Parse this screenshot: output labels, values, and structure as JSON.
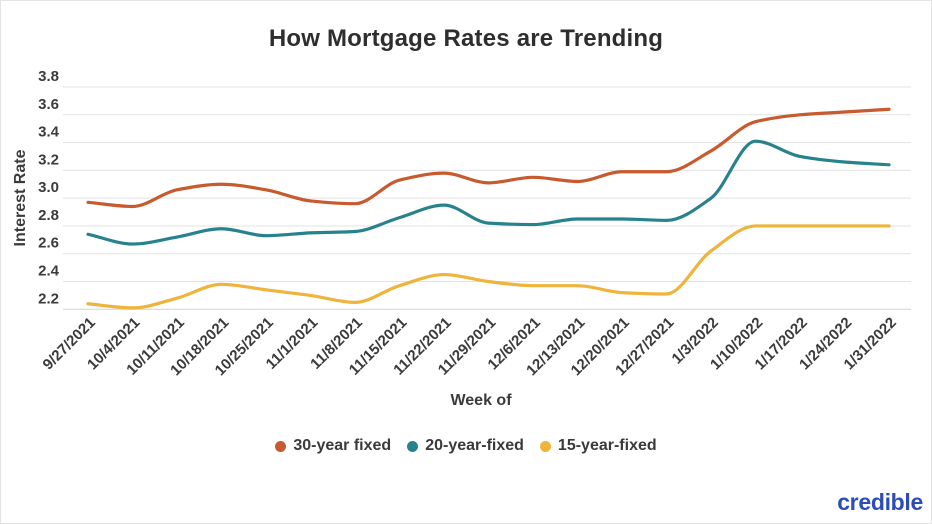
{
  "title": "How Mortgage Rates are Trending",
  "chart_data": {
    "type": "line",
    "title": "How Mortgage Rates are Trending",
    "xlabel": "Week of",
    "ylabel": "Interest Rate",
    "ylim": [
      2.2,
      3.8
    ],
    "y_tick_step": 0.2,
    "y_ticks": [
      "3.8",
      "3.6",
      "3.4",
      "3.2",
      "3.0",
      "2.8",
      "2.6",
      "2.4",
      "2.2"
    ],
    "grid": true,
    "legend_position": "bottom",
    "categories": [
      "9/27/2021",
      "10/4/2021",
      "10/11/2021",
      "10/18/2021",
      "10/25/2021",
      "11/1/2021",
      "11/8/2021",
      "11/15/2021",
      "11/22/2021",
      "11/29/2021",
      "12/6/2021",
      "12/13/2021",
      "12/20/2021",
      "12/27/2021",
      "1/3/2022",
      "1/10/2022",
      "1/17/2022",
      "1/24/2022",
      "1/31/2022"
    ],
    "series": [
      {
        "name": "30-year fixed",
        "color": "#c75a2e",
        "values": [
          2.97,
          2.94,
          3.06,
          3.1,
          3.06,
          2.98,
          2.96,
          3.13,
          3.18,
          3.11,
          3.15,
          3.12,
          3.19,
          3.19,
          3.34,
          3.55,
          3.6,
          3.62,
          3.64
        ]
      },
      {
        "name": "20-year-fixed",
        "color": "#28828e",
        "values": [
          2.74,
          2.67,
          2.72,
          2.78,
          2.73,
          2.75,
          2.76,
          2.86,
          2.95,
          2.82,
          2.81,
          2.85,
          2.85,
          2.84,
          3.0,
          3.41,
          3.3,
          3.26,
          3.24
        ]
      },
      {
        "name": "15-year-fixed",
        "color": "#eeb43c",
        "values": [
          2.24,
          2.21,
          2.28,
          2.38,
          2.34,
          2.3,
          2.25,
          2.37,
          2.45,
          2.4,
          2.37,
          2.37,
          2.32,
          2.31,
          2.62,
          2.8,
          2.8,
          2.8,
          2.8
        ]
      }
    ]
  },
  "colors": {
    "gridline": "#e3e3e3",
    "axis_line": "#d2d2d2",
    "tick_text": "#3b3b3b",
    "title_text": "#2e2e2e",
    "logo_blue": "#2b4db5"
  },
  "logo": {
    "text": "credible"
  }
}
